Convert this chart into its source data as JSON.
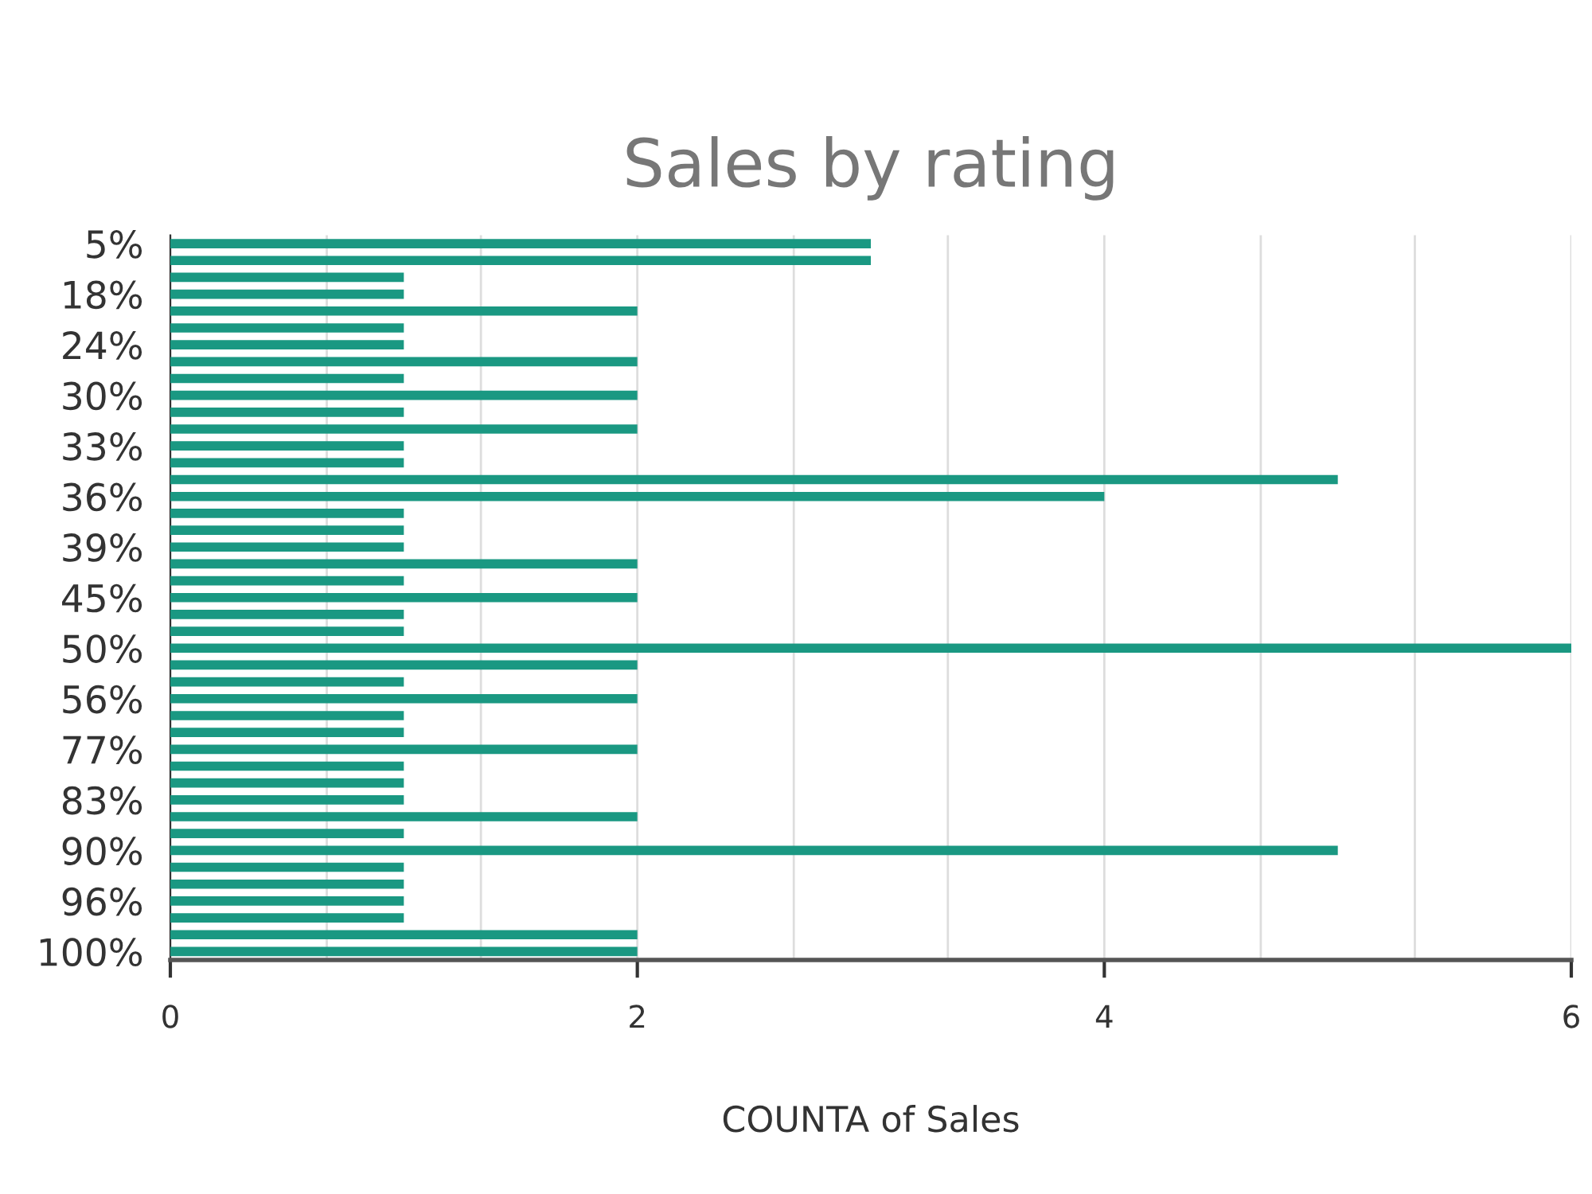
{
  "chart_data": {
    "type": "bar",
    "orientation": "horizontal",
    "title": "Sales by rating",
    "xlabel": "COUNTA of Sales",
    "categories": [
      "5%",
      null,
      null,
      "18%",
      null,
      null,
      "24%",
      null,
      null,
      "30%",
      null,
      null,
      "33%",
      null,
      null,
      "36%",
      null,
      null,
      "39%",
      null,
      null,
      "45%",
      null,
      null,
      "50%",
      null,
      null,
      "56%",
      null,
      null,
      "77%",
      null,
      null,
      "83%",
      null,
      null,
      "90%",
      null,
      null,
      "96%",
      null,
      null,
      "100%"
    ],
    "values": [
      3,
      3,
      1,
      1,
      2,
      1,
      1,
      2,
      1,
      2,
      1,
      2,
      1,
      1,
      5,
      4,
      1,
      1,
      1,
      2,
      1,
      2,
      1,
      1,
      6,
      2,
      1,
      2,
      1,
      1,
      2,
      1,
      1,
      1,
      2,
      1,
      5,
      1,
      1,
      1,
      1,
      2,
      2
    ],
    "color": "#1a9882",
    "xlim": [
      0,
      6
    ],
    "xticks": [
      0,
      {
        "value": 0.67,
        "label": null
      },
      {
        "value": 1.33,
        "label": null
      },
      2,
      {
        "value": 2.67,
        "label": null
      },
      {
        "value": 3.33,
        "label": null
      },
      4,
      {
        "value": 4.67,
        "label": null
      },
      {
        "value": 5.33,
        "label": null
      },
      6
    ],
    "grid": "x",
    "legend": false
  }
}
